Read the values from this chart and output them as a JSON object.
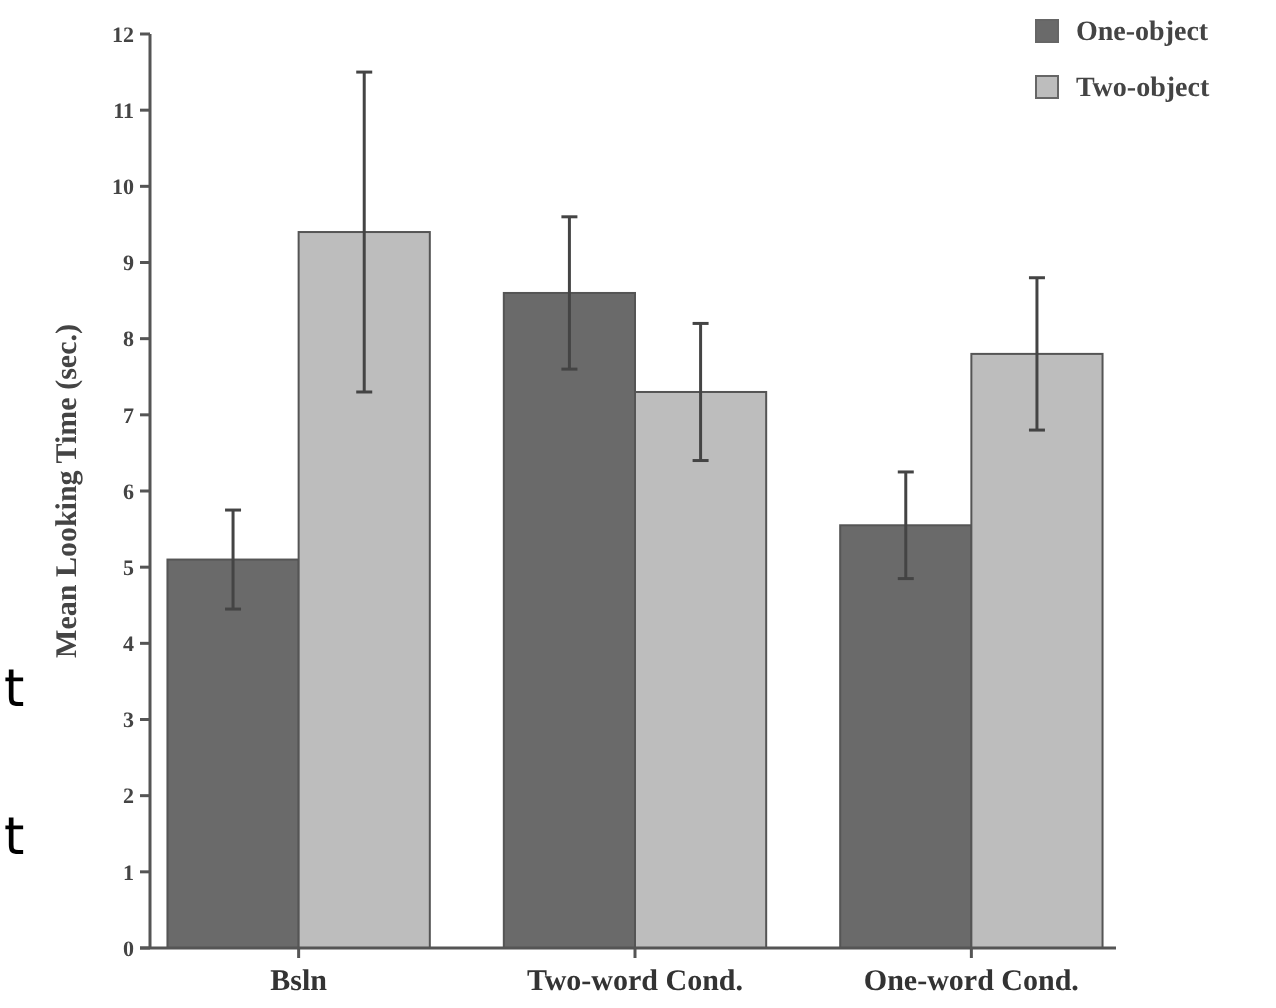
{
  "chart_data": {
    "type": "bar",
    "ylabel": "Mean Looking Time (sec.)",
    "categories": [
      "Bsln",
      "Two-word Cond.",
      "One-word Cond."
    ],
    "series": [
      {
        "name": "One-object",
        "color": "#6a6a6a",
        "values": [
          5.1,
          8.6,
          5.55
        ],
        "errors": [
          0.65,
          1.0,
          0.7
        ]
      },
      {
        "name": "Two-object",
        "color": "#bdbdbd",
        "values": [
          9.4,
          7.3,
          7.8
        ],
        "errors": [
          2.1,
          0.9,
          1.0
        ]
      }
    ],
    "ylim": [
      0,
      12
    ],
    "yticks": [
      0,
      1,
      2,
      3,
      4,
      5,
      6,
      7,
      8,
      9,
      10,
      11,
      12
    ],
    "legend": "top right",
    "grid": false,
    "annotations": [
      "t",
      "t"
    ]
  }
}
